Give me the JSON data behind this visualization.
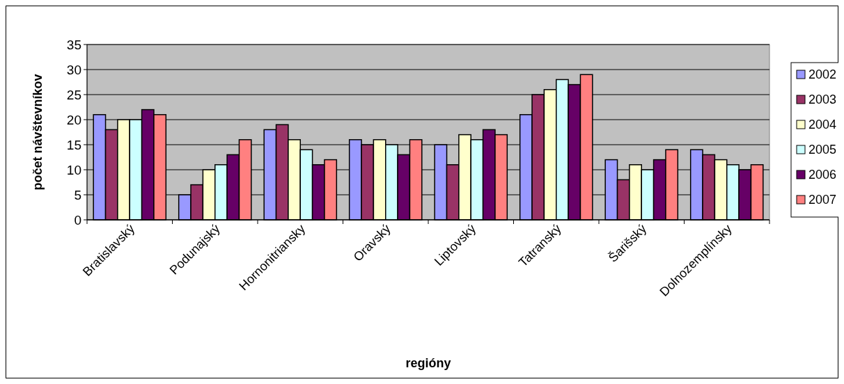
{
  "chart_data": {
    "type": "bar",
    "xlabel": "regióny",
    "ylabel": "počet návštevníkov",
    "categories": [
      "Bratislavský",
      "Podunajský",
      "Hornonitriansky",
      "Oravský",
      "Liptovský",
      "Tatranský",
      "Šarišský",
      "Dolnozemplínsky"
    ],
    "series": [
      {
        "name": "2002",
        "color": "#9999ff",
        "values": [
          21,
          5,
          18,
          16,
          15,
          21,
          12,
          14
        ]
      },
      {
        "name": "2003",
        "color": "#993366",
        "values": [
          18,
          7,
          19,
          15,
          11,
          25,
          8,
          13
        ]
      },
      {
        "name": "2004",
        "color": "#ffffcc",
        "values": [
          20,
          10,
          16,
          16,
          17,
          26,
          11,
          12
        ]
      },
      {
        "name": "2005",
        "color": "#ccffff",
        "values": [
          20,
          11,
          14,
          15,
          16,
          28,
          10,
          11
        ]
      },
      {
        "name": "2006",
        "color": "#660066",
        "values": [
          22,
          13,
          11,
          13,
          18,
          27,
          12,
          10
        ]
      },
      {
        "name": "2007",
        "color": "#ff8080",
        "values": [
          21,
          16,
          12,
          16,
          17,
          29,
          14,
          11
        ]
      }
    ],
    "ylim": [
      0,
      35
    ],
    "yticks": [
      0,
      5,
      10,
      15,
      20,
      25,
      30,
      35
    ],
    "grid": "y",
    "legend": "right"
  }
}
